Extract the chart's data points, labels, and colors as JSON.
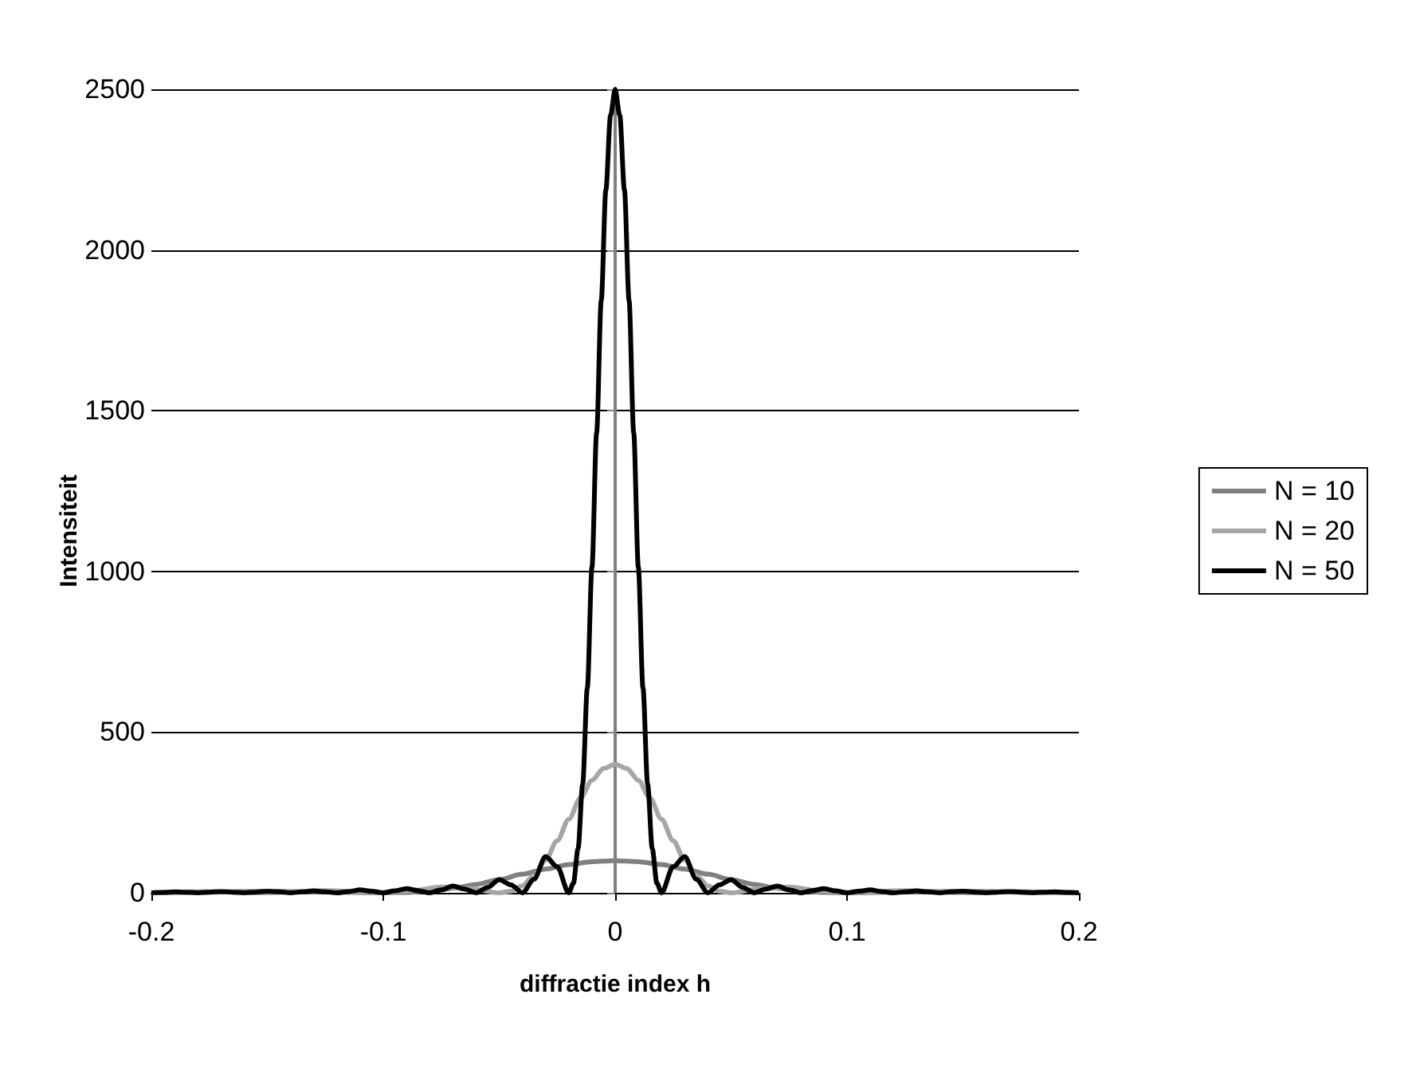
{
  "chart_data": {
    "type": "line",
    "xlabel": "diffractie index h",
    "ylabel": "Intensiteit",
    "xlim": [
      -0.2,
      0.2
    ],
    "xticks": [
      -0.2,
      -0.1,
      0,
      0.1,
      0.2
    ],
    "ylim": [
      0,
      2500
    ],
    "yticks": [
      0,
      500,
      1000,
      1500,
      2000,
      2500
    ],
    "grid": "y",
    "legend": "right",
    "marker": "none",
    "line_style": "solid",
    "series": [
      {
        "name": "N = 10",
        "color": "#808080",
        "x": [
          -0.2,
          -0.175,
          -0.15,
          -0.125,
          -0.1,
          -0.09,
          -0.08,
          -0.07,
          -0.06,
          -0.05,
          -0.04,
          -0.03,
          -0.02,
          -0.01,
          0,
          0.01,
          0.02,
          0.03,
          0.04,
          0.05,
          0.06,
          0.07,
          0.08,
          0.09,
          0.1,
          0.125,
          0.15,
          0.175,
          0.2
        ],
        "values": [
          0,
          2,
          5,
          3,
          0,
          1,
          6,
          14,
          26,
          41,
          58,
          74,
          88,
          97,
          100,
          97,
          88,
          74,
          58,
          41,
          26,
          14,
          6,
          1,
          0,
          3,
          5,
          2,
          0
        ]
      },
      {
        "name": "N = 20",
        "color": "#a6a6a6",
        "x": [
          -0.2,
          -0.175,
          -0.15,
          -0.125,
          -0.1,
          -0.0875,
          -0.075,
          -0.0625,
          -0.05,
          -0.045,
          -0.04,
          -0.035,
          -0.03,
          -0.025,
          -0.02,
          -0.015,
          -0.01,
          -0.005,
          0,
          0.005,
          0.01,
          0.015,
          0.02,
          0.025,
          0.03,
          0.035,
          0.04,
          0.045,
          0.05,
          0.0625,
          0.075,
          0.0875,
          0.1,
          0.125,
          0.15,
          0.175,
          0.2
        ],
        "values": [
          0,
          4,
          0,
          7,
          0,
          7,
          18,
          13,
          0,
          5,
          22,
          54,
          102,
          162,
          229,
          295,
          350,
          387,
          400,
          387,
          350,
          295,
          229,
          162,
          102,
          54,
          22,
          5,
          0,
          13,
          18,
          7,
          0,
          7,
          0,
          4,
          0
        ]
      },
      {
        "name": "N = 50",
        "color": "#000000",
        "x": [
          -0.2,
          -0.195,
          -0.19,
          -0.185,
          -0.18,
          -0.175,
          -0.17,
          -0.165,
          -0.16,
          -0.155,
          -0.15,
          -0.145,
          -0.14,
          -0.135,
          -0.13,
          -0.125,
          -0.12,
          -0.115,
          -0.11,
          -0.105,
          -0.1,
          -0.095,
          -0.09,
          -0.085,
          -0.08,
          -0.075,
          -0.07,
          -0.065,
          -0.06,
          -0.055,
          -0.05,
          -0.045,
          -0.04,
          -0.035,
          -0.03,
          -0.025,
          -0.02,
          -0.018,
          -0.016,
          -0.014,
          -0.012,
          -0.01,
          -0.008,
          -0.006,
          -0.004,
          -0.002,
          0,
          0.002,
          0.004,
          0.006,
          0.008,
          0.01,
          0.012,
          0.014,
          0.016,
          0.018,
          0.02,
          0.025,
          0.03,
          0.035,
          0.04,
          0.045,
          0.05,
          0.055,
          0.06,
          0.065,
          0.07,
          0.075,
          0.08,
          0.085,
          0.09,
          0.095,
          0.1,
          0.105,
          0.11,
          0.115,
          0.12,
          0.125,
          0.13,
          0.135,
          0.14,
          0.145,
          0.15,
          0.155,
          0.16,
          0.165,
          0.17,
          0.175,
          0.18,
          0.185,
          0.19,
          0.195,
          0.2
        ],
        "values": [
          0,
          1,
          3,
          2,
          0,
          2,
          4,
          2,
          0,
          2,
          5,
          3,
          0,
          3,
          6,
          3,
          0,
          4,
          9,
          5,
          0,
          6,
          13,
          7,
          0,
          9,
          21,
          12,
          0,
          17,
          41,
          25,
          0,
          42,
          113,
          81,
          0,
          30,
          137,
          339,
          637,
          1013,
          1431,
          1843,
          2187,
          2418,
          2500,
          2418,
          2187,
          1843,
          1431,
          1013,
          637,
          339,
          137,
          30,
          0,
          81,
          113,
          42,
          0,
          25,
          41,
          17,
          0,
          12,
          21,
          9,
          0,
          7,
          13,
          6,
          0,
          5,
          9,
          4,
          0,
          3,
          6,
          3,
          0,
          3,
          5,
          2,
          0,
          2,
          4,
          2,
          0,
          2,
          3,
          1,
          0
        ]
      }
    ]
  }
}
